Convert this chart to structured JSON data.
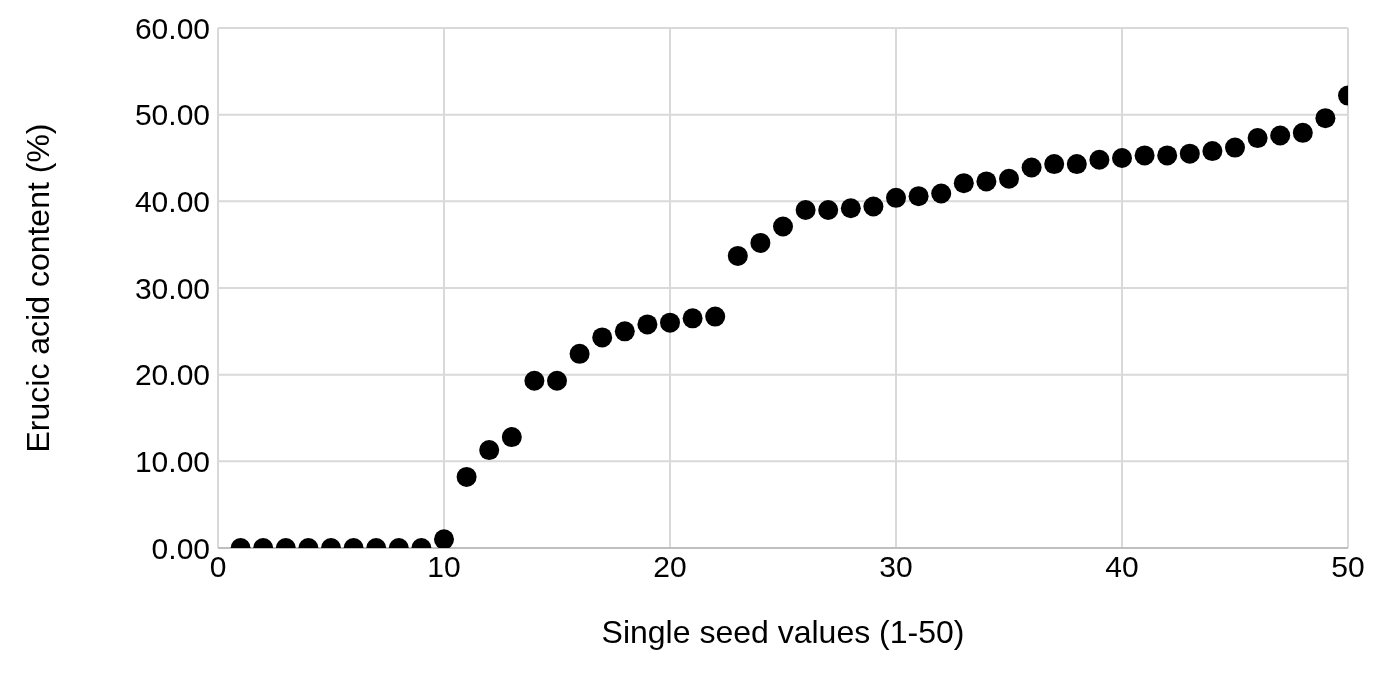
{
  "chart_data": {
    "type": "scatter",
    "xlabel": "Single seed values (1-50)",
    "ylabel": "Erucic acid content (%)",
    "x": [
      1,
      2,
      3,
      4,
      5,
      6,
      7,
      8,
      9,
      10,
      11,
      12,
      13,
      14,
      15,
      16,
      17,
      18,
      19,
      20,
      21,
      22,
      23,
      24,
      25,
      26,
      27,
      28,
      29,
      30,
      31,
      32,
      33,
      34,
      35,
      36,
      37,
      38,
      39,
      40,
      41,
      42,
      43,
      44,
      45,
      46,
      47,
      48,
      49,
      50
    ],
    "series": [
      {
        "color": "#000000",
        "values": [
          0,
          0,
          0,
          0,
          0,
          0,
          0,
          0,
          0,
          1.0,
          8.2,
          11.3,
          12.8,
          19.3,
          19.3,
          22.4,
          24.3,
          25.0,
          25.8,
          26.0,
          26.5,
          26.7,
          33.7,
          35.2,
          37.1,
          39.0,
          39.0,
          39.2,
          39.4,
          40.4,
          40.6,
          40.9,
          42.1,
          42.3,
          42.6,
          43.9,
          44.3,
          44.3,
          44.8,
          45.0,
          45.3,
          45.3,
          45.5,
          45.8,
          46.2,
          47.3,
          47.6,
          47.9,
          49.6,
          52.2
        ]
      }
    ],
    "xlim": [
      0,
      50
    ],
    "xticks": [
      0,
      10,
      20,
      30,
      40,
      50
    ],
    "ylim": [
      0,
      60
    ],
    "yticks": [
      {
        "value": 0,
        "label": "0.00"
      },
      {
        "value": 10,
        "label": "10.00"
      },
      {
        "value": 20,
        "label": "20.00"
      },
      {
        "value": 30,
        "label": "30.00"
      },
      {
        "value": 40,
        "label": "40.00"
      },
      {
        "value": 50,
        "label": "50.00"
      },
      {
        "value": 60,
        "label": "60.00"
      }
    ],
    "grid": true,
    "marker": "circle"
  }
}
